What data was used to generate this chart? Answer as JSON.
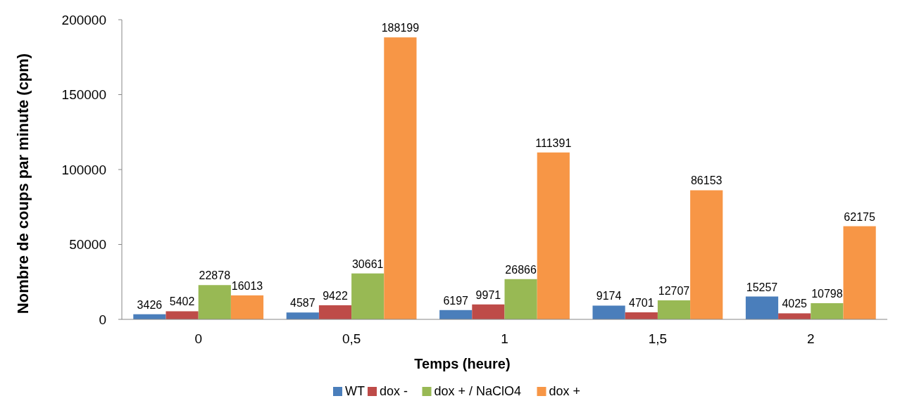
{
  "chart_data": {
    "type": "bar",
    "xlabel": "Temps (heure)",
    "ylabel": "Nombre de coups par minute (cpm)",
    "categories": [
      "0",
      "0,5",
      "1",
      "1,5",
      "2"
    ],
    "series": [
      {
        "name": "WT",
        "color": "#4a7ebb",
        "values": [
          3426,
          4587,
          6197,
          9174,
          15257
        ]
      },
      {
        "name": "dox -",
        "color": "#be4b48",
        "values": [
          5402,
          9422,
          9971,
          4701,
          4025
        ]
      },
      {
        "name": "dox + / NaClO4",
        "color": "#98b954",
        "values": [
          22878,
          30661,
          26866,
          12707,
          10798
        ]
      },
      {
        "name": "dox +",
        "color": "#f79646",
        "values": [
          16013,
          188199,
          111391,
          86153,
          62175
        ]
      }
    ],
    "ylim": [
      0,
      200000
    ],
    "yticks": [
      0,
      50000,
      100000,
      150000,
      200000
    ],
    "grid": false,
    "legend": "bottom",
    "data_labels": true
  }
}
